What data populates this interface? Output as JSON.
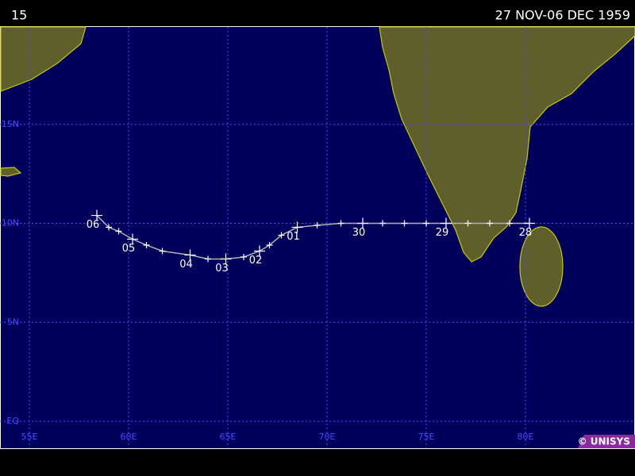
{
  "header": {
    "storm_number": "15",
    "date_range": "27 NOV-06 DEC 1959"
  },
  "map": {
    "lonlim": [
      53.52,
      85.52
    ],
    "latlim": [
      -1.36,
      19.92
    ],
    "lon_ticks": [
      {
        "value": 55,
        "label": "55E"
      },
      {
        "value": 60,
        "label": "60E"
      },
      {
        "value": 65,
        "label": "65E"
      },
      {
        "value": 70,
        "label": "70E"
      },
      {
        "value": 75,
        "label": "75E"
      },
      {
        "value": 80,
        "label": "80E"
      }
    ],
    "lat_ticks": [
      {
        "value": 0,
        "label": "EQ"
      },
      {
        "value": 5,
        "label": "5N"
      },
      {
        "value": 10,
        "label": "10N"
      },
      {
        "value": 15,
        "label": "15N"
      }
    ],
    "grid_color": "#4a4aff",
    "track_color": "#b0b0b0"
  },
  "track": {
    "points": [
      {
        "lon": 80.2,
        "lat": 10.0,
        "label": "28"
      },
      {
        "lon": 79.2,
        "lat": 10.0,
        "label": null
      },
      {
        "lon": 78.2,
        "lat": 10.0,
        "label": null
      },
      {
        "lon": 77.1,
        "lat": 10.0,
        "label": null
      },
      {
        "lon": 76.0,
        "lat": 10.0,
        "label": "29"
      },
      {
        "lon": 75.0,
        "lat": 10.0,
        "label": null
      },
      {
        "lon": 73.9,
        "lat": 10.0,
        "label": null
      },
      {
        "lon": 72.8,
        "lat": 10.0,
        "label": null
      },
      {
        "lon": 71.8,
        "lat": 10.0,
        "label": "30"
      },
      {
        "lon": 70.7,
        "lat": 10.0,
        "label": null
      },
      {
        "lon": 69.5,
        "lat": 9.9,
        "label": null
      },
      {
        "lon": 68.5,
        "lat": 9.8,
        "label": "01"
      },
      {
        "lon": 67.7,
        "lat": 9.4,
        "label": null
      },
      {
        "lon": 67.1,
        "lat": 8.9,
        "label": null
      },
      {
        "lon": 66.6,
        "lat": 8.6,
        "label": "02"
      },
      {
        "lon": 65.8,
        "lat": 8.3,
        "label": null
      },
      {
        "lon": 64.9,
        "lat": 8.2,
        "label": "03"
      },
      {
        "lon": 64.0,
        "lat": 8.2,
        "label": null
      },
      {
        "lon": 63.1,
        "lat": 8.4,
        "label": "04"
      },
      {
        "lon": 61.7,
        "lat": 8.6,
        "label": null
      },
      {
        "lon": 60.9,
        "lat": 8.9,
        "label": null
      },
      {
        "lon": 60.2,
        "lat": 9.2,
        "label": "05"
      },
      {
        "lon": 59.5,
        "lat": 9.6,
        "label": null
      },
      {
        "lon": 59.0,
        "lat": 9.8,
        "label": null
      },
      {
        "lon": 58.4,
        "lat": 10.4,
        "label": "06"
      }
    ]
  },
  "credit": "© UNISYS"
}
